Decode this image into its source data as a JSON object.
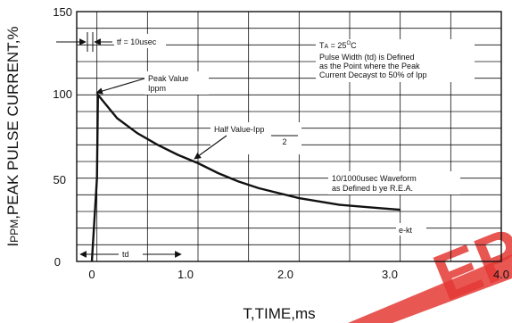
{
  "chart_data": {
    "type": "line",
    "title": "",
    "xlabel": "T,TIME,ms",
    "ylabel": "IPPM,PEAK PULSE CURRENT,%",
    "ylabel_parts": {
      "prefix": "I",
      "sub": "PPM",
      "rest": ",PEAK PULSE CURRENT,%"
    },
    "xlim": [
      -0.2,
      4.0
    ],
    "ylim": [
      0,
      150
    ],
    "x_ticks": [
      0,
      1.0,
      2.0,
      3.0,
      4.0
    ],
    "x_tick_labels": [
      "0",
      "1.0",
      "2.0",
      "3.0",
      "4.0"
    ],
    "y_ticks": [
      0,
      50,
      100,
      150
    ],
    "y_tick_labels": [
      "0",
      "50",
      "100",
      "150"
    ],
    "grid": true,
    "series": [
      {
        "x": [
          -0.05,
          0.0,
          0.01,
          0.2,
          0.4,
          0.6,
          0.8,
          1.0,
          1.2,
          1.4,
          1.6,
          1.8,
          2.0,
          2.2,
          2.4,
          2.6,
          2.8,
          3.0
        ],
        "y": [
          0,
          50,
          100,
          86,
          77,
          70,
          64,
          59,
          53,
          48,
          44,
          41,
          38,
          36,
          34,
          33,
          32,
          31
        ]
      }
    ],
    "annotations": {
      "tf": "tf = 10usec",
      "ta": "TA = 25°C",
      "ta_parts": {
        "t": "T",
        "sub": "A",
        "rest": " = 25",
        "deg": "O",
        "unit": "C"
      },
      "pulse_width_lines": [
        "Pulse Width (td) is Defined",
        "as the Point where the Peak",
        "Current Decayst to 50% of Ipp"
      ],
      "peak_value_lines": [
        "Peak Value",
        "Ippm"
      ],
      "half_value_top": "Half Value-Ipp",
      "half_value_bottom": "2",
      "waveform_lines": [
        "10/1000usec Waveform",
        "as Defined b ye R.E.A."
      ],
      "ekt": "e-kt",
      "td": "td"
    },
    "watermark": "EPA"
  }
}
